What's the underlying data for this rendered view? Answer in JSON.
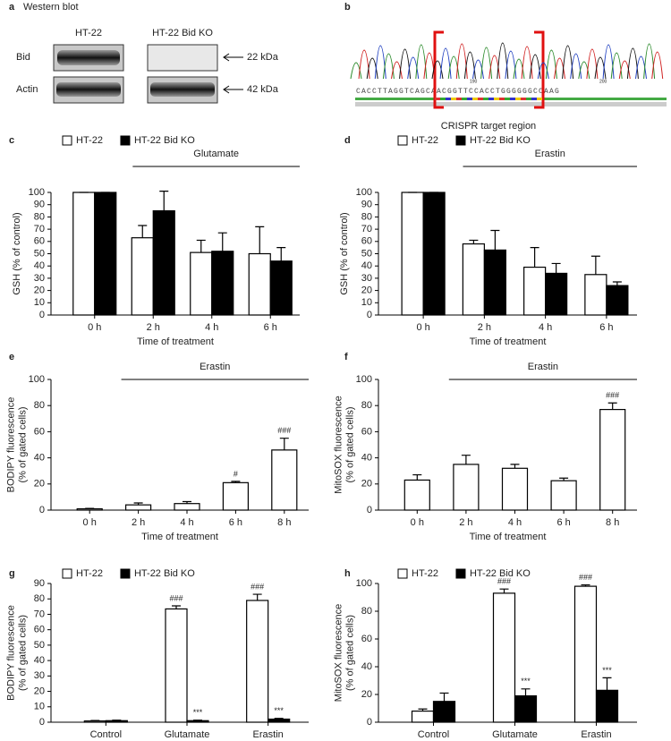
{
  "panels": {
    "a": {
      "letter": "a",
      "title": "Western blot",
      "columns": [
        "HT-22",
        "HT-22 Bid KO"
      ],
      "rows": [
        "Bid",
        "Actin"
      ],
      "sizes": [
        "22 kDa",
        "42 kDa"
      ]
    },
    "b": {
      "letter": "b",
      "sequence": "CACCTTAGGTCAGCAACGGTTCCACCTGGGGGGCCAAG",
      "positions": [
        "190",
        "200"
      ],
      "caption": "CRISPR target region"
    }
  },
  "chart_data": [
    {
      "type": "bar",
      "panel": "c",
      "treatment": "Glutamate",
      "ylabel": [
        "GSH (% of control)"
      ],
      "xlabel": "Time of treatment",
      "categories": [
        "0 h",
        "2 h",
        "4 h",
        "6 h"
      ],
      "ylim": [
        0,
        100
      ],
      "yticks": [
        0,
        10,
        20,
        30,
        40,
        50,
        60,
        70,
        80,
        90,
        100
      ],
      "series": [
        {
          "name": "HT-22",
          "color": "#ffffff",
          "values": [
            100,
            63,
            51,
            50
          ],
          "errors": [
            0,
            10,
            10,
            22
          ]
        },
        {
          "name": "HT-22 Bid KO",
          "color": "#000000",
          "values": [
            100,
            85,
            52,
            44
          ],
          "errors": [
            0,
            16,
            15,
            11
          ]
        }
      ]
    },
    {
      "type": "bar",
      "panel": "d",
      "treatment": "Erastin",
      "ylabel": [
        "GSH (% of control)"
      ],
      "xlabel": "Time of treatment",
      "categories": [
        "0 h",
        "2 h",
        "4 h",
        "6 h"
      ],
      "ylim": [
        0,
        100
      ],
      "yticks": [
        0,
        10,
        20,
        30,
        40,
        50,
        60,
        70,
        80,
        90,
        100
      ],
      "series": [
        {
          "name": "HT-22",
          "color": "#ffffff",
          "values": [
            100,
            58,
            39,
            33
          ],
          "errors": [
            0,
            3,
            16,
            15
          ]
        },
        {
          "name": "HT-22 Bid KO",
          "color": "#000000",
          "values": [
            100,
            53,
            34,
            24
          ],
          "errors": [
            0,
            16,
            8,
            3
          ]
        }
      ]
    },
    {
      "type": "bar",
      "panel": "e",
      "treatment": "Erastin",
      "ylabel": [
        "BODIPY fluorescence",
        "(% of gated cells)"
      ],
      "xlabel": "Time of treatment",
      "categories": [
        "0 h",
        "2 h",
        "4 h",
        "6 h",
        "8 h"
      ],
      "ylim": [
        0,
        100
      ],
      "yticks": [
        0,
        20,
        40,
        60,
        80,
        100
      ],
      "series": [
        {
          "color": "#ffffff",
          "values": [
            1,
            4,
            5,
            21,
            46
          ],
          "errors": [
            0.3,
            1.5,
            1.5,
            1,
            9
          ],
          "annotations": [
            null,
            null,
            null,
            "#",
            "###"
          ]
        }
      ]
    },
    {
      "type": "bar",
      "panel": "f",
      "treatment": "Erastin",
      "ylabel": [
        "MitoSOX fluorescence",
        "(% of gated cells)"
      ],
      "xlabel": "Time of treatment",
      "categories": [
        "0 h",
        "2 h",
        "4 h",
        "6 h",
        "8 h"
      ],
      "ylim": [
        0,
        100
      ],
      "yticks": [
        0,
        20,
        40,
        60,
        80,
        100
      ],
      "series": [
        {
          "color": "#ffffff",
          "values": [
            23,
            35,
            32,
            22.5,
            77
          ],
          "errors": [
            4,
            7,
            3,
            2,
            5
          ],
          "annotations": [
            null,
            null,
            null,
            null,
            "###"
          ]
        }
      ]
    },
    {
      "type": "bar",
      "panel": "g",
      "ylabel": [
        "BODIPY fluorescence",
        "(% of gated cells)"
      ],
      "categories": [
        "Control",
        "Glutamate",
        "Erastin"
      ],
      "ylim": [
        0,
        90
      ],
      "yticks": [
        0,
        10,
        20,
        30,
        40,
        50,
        60,
        70,
        80,
        90
      ],
      "series": [
        {
          "name": "HT-22",
          "color": "#ffffff",
          "values": [
            0.8,
            73.5,
            79
          ],
          "errors": [
            0.3,
            2,
            4
          ],
          "annotations": [
            null,
            "###",
            "###"
          ]
        },
        {
          "name": "HT-22 Bid KO",
          "color": "#000000",
          "values": [
            1,
            1,
            2
          ],
          "errors": [
            0.3,
            0.3,
            0.5
          ],
          "annotations": [
            null,
            "***",
            "***"
          ]
        }
      ]
    },
    {
      "type": "bar",
      "panel": "h",
      "ylabel": [
        "MitoSOX fluorescence",
        "(% of gated cells)"
      ],
      "categories": [
        "Control",
        "Glutamate",
        "Erastin"
      ],
      "ylim": [
        0,
        100
      ],
      "yticks": [
        0,
        20,
        40,
        60,
        80,
        100
      ],
      "series": [
        {
          "name": "HT-22",
          "color": "#ffffff",
          "values": [
            8,
            93,
            98
          ],
          "errors": [
            1.5,
            3,
            1
          ],
          "annotations": [
            null,
            "###",
            "###"
          ]
        },
        {
          "name": "HT-22 Bid KO",
          "color": "#000000",
          "values": [
            15,
            19,
            23
          ],
          "errors": [
            6,
            5,
            9
          ],
          "annotations": [
            null,
            "***",
            "***"
          ]
        }
      ]
    }
  ]
}
